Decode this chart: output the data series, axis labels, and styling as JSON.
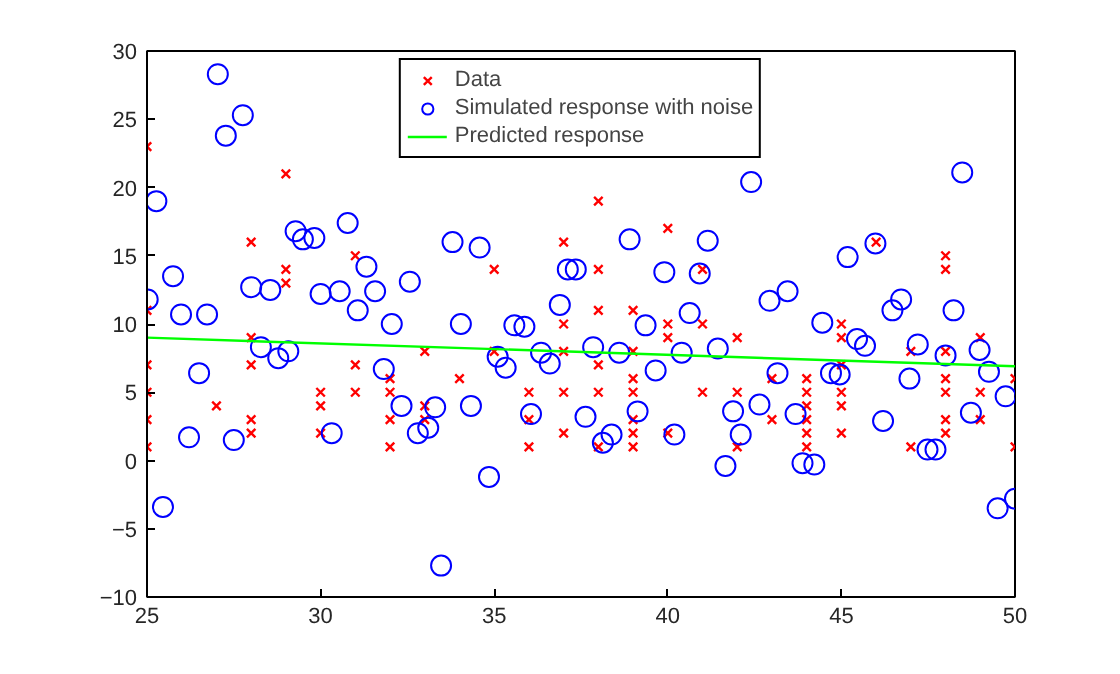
{
  "chart_data": {
    "type": "scatter",
    "xlim": [
      25,
      50
    ],
    "ylim": [
      -10,
      30
    ],
    "xticks": [
      25,
      30,
      35,
      40,
      45,
      50
    ],
    "yticks": [
      -10,
      -5,
      0,
      5,
      10,
      15,
      20,
      25,
      30
    ],
    "grid": false,
    "legend": "top",
    "series": [
      {
        "name": "Data",
        "marker": "cross",
        "color": "#ff0000",
        "x": [
          25,
          25,
          25,
          25,
          25,
          25,
          27,
          28,
          28,
          28,
          28,
          28,
          29,
          29,
          29,
          30,
          30,
          30,
          31,
          31,
          31,
          32,
          32,
          32,
          32,
          33,
          33,
          33,
          34,
          35,
          35,
          36,
          36,
          36,
          37,
          37,
          37,
          37,
          37,
          38,
          38,
          38,
          38,
          38,
          38,
          39,
          39,
          39,
          39,
          39,
          39,
          39,
          40,
          40,
          40,
          40,
          41,
          41,
          41,
          42,
          42,
          42,
          43,
          43,
          44,
          44,
          44,
          44,
          44,
          44,
          45,
          45,
          45,
          45,
          45,
          45,
          46,
          47,
          47,
          48,
          48,
          48,
          48,
          48,
          48,
          48,
          49,
          49,
          49,
          50,
          50
        ],
        "values": [
          23,
          11,
          7,
          5,
          3,
          1,
          4,
          16,
          9,
          7,
          3,
          2,
          21,
          14,
          13,
          5,
          4,
          2,
          15,
          7,
          5,
          6,
          5,
          3,
          1,
          8,
          4,
          3,
          6,
          14,
          8,
          5,
          3,
          1,
          16,
          10,
          8,
          5,
          2,
          19,
          14,
          11,
          7,
          5,
          1,
          11,
          8,
          6,
          5,
          3,
          2,
          1,
          17,
          10,
          9,
          2,
          14,
          10,
          5,
          9,
          5,
          1,
          6,
          3,
          6,
          5,
          4,
          3,
          2,
          1,
          10,
          9,
          7,
          5,
          4,
          2,
          16,
          8,
          1,
          15,
          14,
          8,
          6,
          5,
          3,
          2,
          9,
          5,
          3,
          6,
          1
        ]
      },
      {
        "name": "Simulated response with noise",
        "marker": "circle",
        "color": "#0000ff",
        "x": [
          25.02,
          25.27,
          25.46,
          25.75,
          25.98,
          26.21,
          26.5,
          26.73,
          27.04,
          27.27,
          27.5,
          27.76,
          28.0,
          28.28,
          28.55,
          28.78,
          29.07,
          29.28,
          29.49,
          29.82,
          30.0,
          30.32,
          30.55,
          30.78,
          31.07,
          31.32,
          31.57,
          31.82,
          32.05,
          32.33,
          32.57,
          32.8,
          33.1,
          33.3,
          33.47,
          33.8,
          34.04,
          34.33,
          34.58,
          34.85,
          35.1,
          35.33,
          35.58,
          35.87,
          36.06,
          36.35,
          36.6,
          36.89,
          37.12,
          37.35,
          37.63,
          37.85,
          38.13,
          38.38,
          38.6,
          38.9,
          39.13,
          39.36,
          39.65,
          39.9,
          40.19,
          40.4,
          40.63,
          40.92,
          41.15,
          41.44,
          41.66,
          41.88,
          42.1,
          42.4,
          42.64,
          42.93,
          43.16,
          43.45,
          43.68,
          43.88,
          44.22,
          44.45,
          44.7,
          44.95,
          45.18,
          45.45,
          45.68,
          45.98,
          46.2,
          46.47,
          46.72,
          46.96,
          47.2,
          47.48,
          47.71,
          48.0,
          48.23,
          48.48,
          48.73,
          48.98,
          49.25,
          49.5,
          49.73,
          50.0
        ],
        "values": [
          11.8,
          19.0,
          -3.4,
          13.5,
          10.7,
          1.7,
          6.4,
          10.7,
          28.3,
          23.8,
          1.5,
          25.3,
          12.7,
          8.3,
          12.5,
          7.5,
          8.0,
          16.8,
          16.2,
          16.3,
          12.2,
          2.0,
          12.4,
          17.4,
          11.0,
          14.2,
          12.4,
          6.7,
          10.0,
          4.0,
          13.1,
          2.0,
          2.4,
          3.9,
          -7.7,
          16.0,
          10.0,
          4.0,
          15.6,
          -1.2,
          7.6,
          6.8,
          9.9,
          9.8,
          3.4,
          7.9,
          7.1,
          11.4,
          14.0,
          14.0,
          3.2,
          8.3,
          1.3,
          1.9,
          7.9,
          16.2,
          3.6,
          9.9,
          6.6,
          13.8,
          1.9,
          7.9,
          10.8,
          13.7,
          16.1,
          8.2,
          -0.4,
          3.6,
          1.9,
          20.4,
          4.1,
          11.7,
          6.4,
          12.4,
          3.4,
          -0.2,
          -0.3,
          10.1,
          6.4,
          6.3,
          14.9,
          8.9,
          8.4,
          15.9,
          2.9,
          11.0,
          11.8,
          6.0,
          8.5,
          0.8,
          0.8,
          7.7,
          11.0,
          21.1,
          3.5,
          8.1,
          6.5,
          -3.5,
          4.7,
          -2.8
        ]
      },
      {
        "name": "Predicted response",
        "type": "line",
        "marker": "none",
        "line_style": "solid",
        "color": "#00ff00",
        "x": [
          25,
          50
        ],
        "values": [
          9.0,
          6.9
        ]
      }
    ]
  }
}
